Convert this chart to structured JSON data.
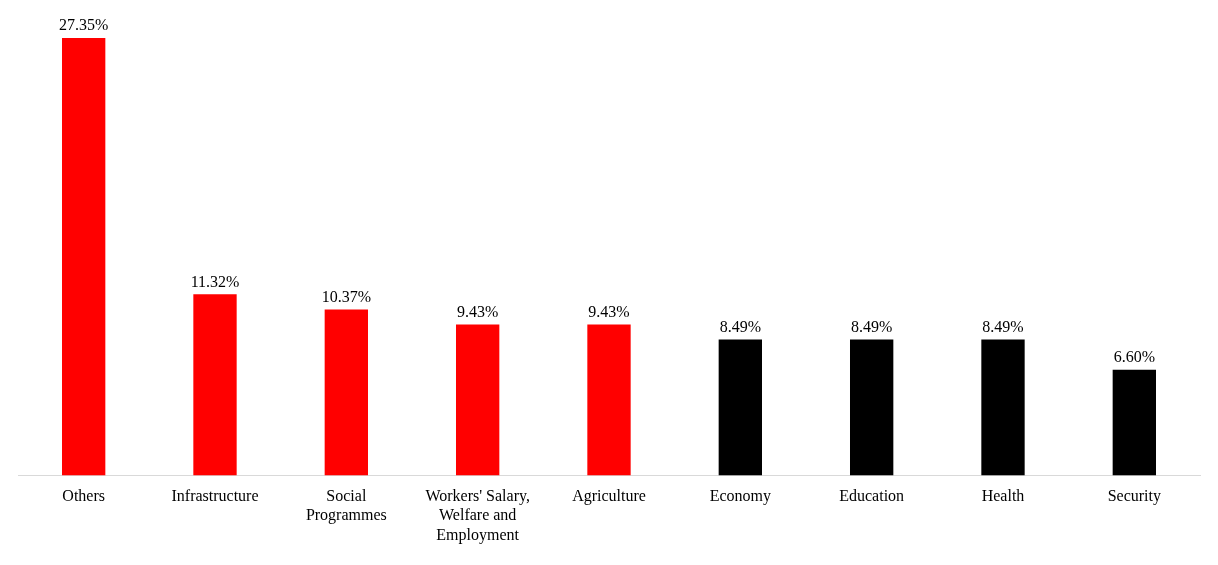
{
  "chart_data": {
    "type": "bar",
    "categories": [
      "Others",
      "Infrastructure",
      "Social Programmes",
      "Workers' Salary, Welfare and Employment",
      "Agriculture",
      "Economy",
      "Education",
      "Health",
      "Security"
    ],
    "values": [
      27.35,
      11.32,
      10.37,
      9.43,
      9.43,
      8.49,
      8.49,
      8.49,
      6.6
    ],
    "value_labels": [
      "27.35%",
      "11.32%",
      "10.37%",
      "9.43%",
      "9.43%",
      "8.49%",
      "8.49%",
      "8.49%",
      "6.60%"
    ],
    "colors": [
      "#ff0000",
      "#ff0000",
      "#ff0000",
      "#ff0000",
      "#ff0000",
      "#000000",
      "#000000",
      "#000000",
      "#000000"
    ],
    "grid": false,
    "legend": false
  }
}
